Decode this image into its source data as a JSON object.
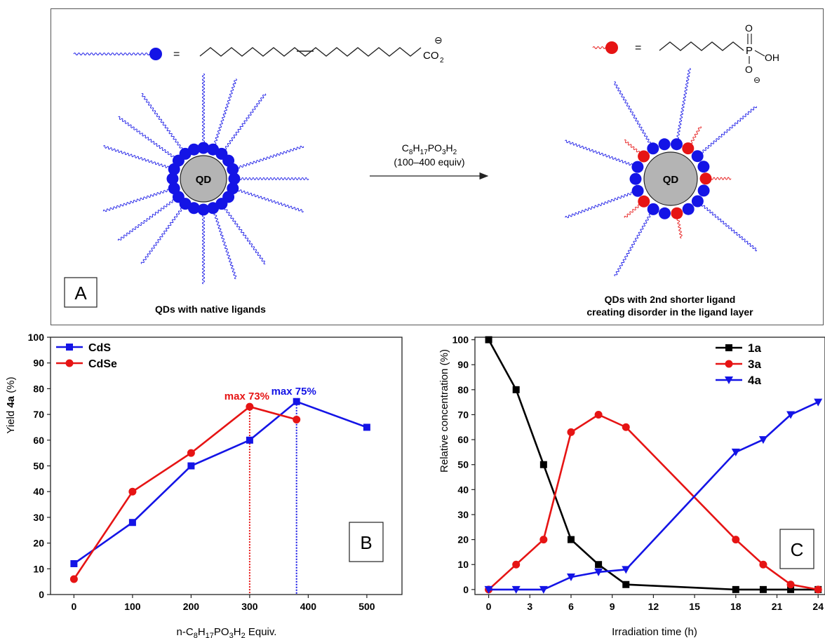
{
  "panel_a": {
    "label": "A",
    "native": {
      "core_label": "QD",
      "caption": "QDs with native ligands",
      "legend_equals": "=",
      "carboxylate": "CO",
      "carboxylate_sub": "2",
      "charge_symbol": "⊖"
    },
    "exchanged": {
      "core_label": "QD",
      "caption_line1": "QDs with 2nd shorter ligand",
      "caption_line2": "creating disorder in the ligand layer",
      "legend_equals": "=",
      "phosphorus": "P",
      "oxygen_top": "O",
      "oxygen_bottom": "O",
      "hydroxyl": "OH",
      "charge_symbol": "⊖"
    },
    "reaction": {
      "reagent_parts": [
        "C",
        "8",
        "H",
        "17",
        "PO",
        "3",
        "H",
        "2"
      ],
      "condition": "(100–400 equiv)"
    },
    "colors": {
      "native": "#1414e6",
      "short": "#e61414",
      "core": "#b4b4b4"
    }
  },
  "chart_data": [
    {
      "panel": "B",
      "type": "line",
      "xlabel_parts": [
        "n-C",
        "8",
        "H",
        "17",
        "PO",
        "3",
        "H",
        "2",
        " Equiv."
      ],
      "ylabel_parts": [
        "Yield ",
        "4a",
        " (%)"
      ],
      "xlim": [
        -40,
        560
      ],
      "ylim": [
        0,
        100
      ],
      "xticks": [
        0,
        100,
        200,
        300,
        400,
        500
      ],
      "yticks": [
        0,
        10,
        20,
        30,
        40,
        50,
        60,
        70,
        80,
        90,
        100
      ],
      "legend_position": "top-left",
      "series": [
        {
          "name": "CdS",
          "color": "#1414e6",
          "marker": "square",
          "x": [
            0,
            100,
            200,
            300,
            380,
            500
          ],
          "y": [
            12,
            28,
            50,
            60,
            75,
            65
          ]
        },
        {
          "name": "CdSe",
          "color": "#e61414",
          "marker": "circle",
          "x": [
            0,
            100,
            200,
            300,
            380
          ],
          "y": [
            6,
            40,
            55,
            73,
            68
          ]
        }
      ],
      "annotations": [
        {
          "text": "max 73%",
          "color": "#e61414",
          "x": 300,
          "y": 73
        },
        {
          "text": "max 75%",
          "color": "#1414e6",
          "x": 380,
          "y": 75
        }
      ]
    },
    {
      "panel": "C",
      "type": "line",
      "xlabel": "Irradiation time (h)",
      "ylabel": "Relative concentration (%)",
      "xlim": [
        -1,
        24.5
      ],
      "ylim": [
        -2,
        101
      ],
      "xticks": [
        0,
        3,
        6,
        9,
        12,
        15,
        18,
        21,
        24
      ],
      "yticks": [
        0,
        10,
        20,
        30,
        40,
        50,
        60,
        70,
        80,
        90,
        100
      ],
      "legend_position": "top-right",
      "series": [
        {
          "name": "1a",
          "color": "#000000",
          "marker": "square",
          "x": [
            0,
            2,
            4,
            6,
            8,
            10,
            18,
            20,
            22,
            24
          ],
          "y": [
            100,
            80,
            50,
            20,
            10,
            2,
            0,
            0,
            0,
            0
          ]
        },
        {
          "name": "3a",
          "color": "#e61414",
          "marker": "circle",
          "x": [
            0,
            2,
            4,
            6,
            8,
            10,
            18,
            20,
            22,
            24
          ],
          "y": [
            0,
            10,
            20,
            63,
            70,
            65,
            20,
            10,
            2,
            0
          ]
        },
        {
          "name": "4a",
          "color": "#1414e6",
          "marker": "triangle-down",
          "x": [
            0,
            2,
            4,
            6,
            8,
            10,
            18,
            20,
            22,
            24
          ],
          "y": [
            0,
            0,
            0,
            5,
            7,
            8,
            55,
            60,
            70,
            75
          ]
        }
      ]
    }
  ]
}
